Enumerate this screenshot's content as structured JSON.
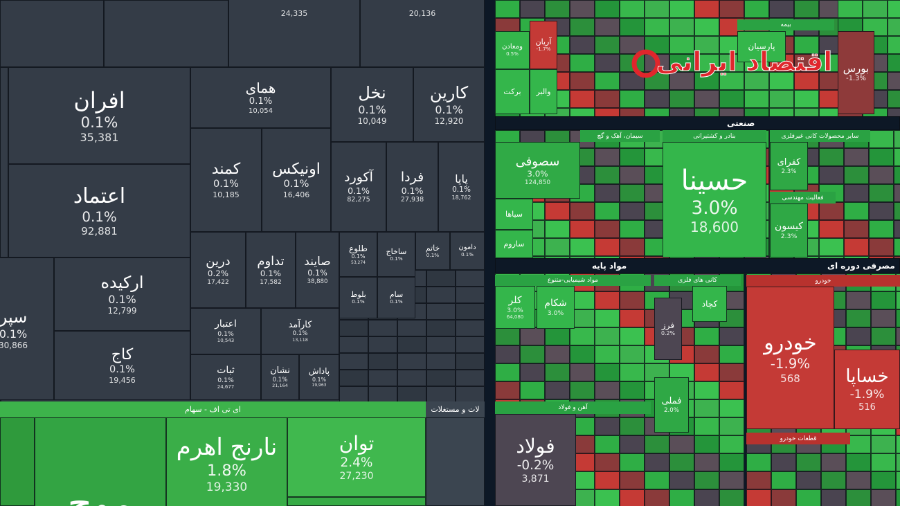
{
  "left_panel": {
    "tiles": [
      {
        "volume": "24,335"
      },
      {
        "volume": "20,136"
      },
      {
        "label": "افران",
        "change": "0.1%",
        "volume": "35,381"
      },
      {
        "label": "اعتماد",
        "change": "0.1%",
        "volume": "92,881"
      },
      {
        "label": "همای",
        "change": "0.1%",
        "volume": "10,054"
      },
      {
        "label": "نخل",
        "change": "0.1%",
        "volume": "10,049"
      },
      {
        "label": "کارین",
        "change": "0.1%",
        "volume": "12,920"
      },
      {
        "label": "کمند",
        "change": "0.1%",
        "volume": "10,185"
      },
      {
        "label": "اونیکس",
        "change": "0.1%",
        "volume": "16,406"
      },
      {
        "label": "آکورد",
        "change": "0.1%",
        "volume": "82,275"
      },
      {
        "label": "فردا",
        "change": "0.1%",
        "volume": "27,938"
      },
      {
        "label": "پایا",
        "change": "0.1%",
        "volume": "18,762"
      },
      {
        "label": "ارکیده",
        "change": "0.1%",
        "volume": "12,799"
      },
      {
        "label": "سپر",
        "change": "0.1%",
        "volume": "30,866"
      },
      {
        "label": "کاج",
        "change": "0.1%",
        "volume": "19,456"
      },
      {
        "label": "درین",
        "change": "0.2%",
        "volume": "17,422"
      },
      {
        "label": "تداوم",
        "change": "0.1%",
        "volume": "17,582"
      },
      {
        "label": "صایند",
        "change": "0.1%",
        "volume": "38,880"
      },
      {
        "label": "طلوع",
        "change": "0.1%",
        "volume": "53,274"
      },
      {
        "label": "ساخاج",
        "change": "0.1%"
      },
      {
        "label": "خاتم",
        "change": "0.1%"
      },
      {
        "label": "دامون",
        "change": "0.1%"
      },
      {
        "label": "اعتبار",
        "change": "0.1%",
        "volume": "10,543"
      },
      {
        "label": "کارآمد",
        "change": "0.1%",
        "volume": "13,118"
      },
      {
        "label": "ثبات",
        "change": "0.1%",
        "volume": "24,677"
      },
      {
        "label": "نشان",
        "change": "0.1%",
        "volume": "21,164"
      },
      {
        "label": "پاداش",
        "change": "0.1%",
        "volume": "19,963"
      },
      {
        "label": "بلوط",
        "change": "0.1%"
      },
      {
        "label": "سام",
        "change": "0.1%"
      }
    ]
  },
  "etf_section": {
    "header": "ای تی اف - سهام",
    "side_header": "لات و مستغلات",
    "tiles": [
      {
        "label": "موج"
      },
      {
        "label": "نارنج اهرم",
        "change": "1.8%",
        "volume": "19,330"
      },
      {
        "label": "توان",
        "change": "2.4%",
        "volume": "27,230"
      }
    ]
  },
  "right_panel": {
    "sections": [
      "صنعتی",
      "مواد پایه",
      "مصرفی دوره ای"
    ],
    "groups": [
      "بنادر و کشتیرانی",
      "سیمان، آهک و گچ",
      "سایر محصولات کانی غیرفلزی",
      "فعالیت مهندسی",
      "مواد شیمیایی-متنوع",
      "کانی های فلزی",
      "آهن و فولاد",
      "خودرو",
      "قطعات خودرو",
      "بیمه"
    ],
    "tiles": [
      {
        "label": "حسینا",
        "change": "3.0%",
        "volume": "18,600"
      },
      {
        "label": "سصوفی",
        "change": "3.0%",
        "volume": "124,850"
      },
      {
        "label": "خودرو",
        "change": "-1.9%",
        "volume": "568"
      },
      {
        "label": "خساپا",
        "change": "-1.9%",
        "volume": "516"
      },
      {
        "label": "فولاد",
        "change": "-0.2%",
        "volume": "3,871"
      },
      {
        "label": "بورس",
        "change": "-1.3%"
      },
      {
        "label": "کیسون",
        "change": "2.3%"
      },
      {
        "label": "کفرای",
        "change": "2.3%"
      },
      {
        "label": "کلر",
        "change": "3.0%",
        "volume": "64,080"
      },
      {
        "label": "شکام",
        "change": "3.0%"
      },
      {
        "label": "فملی",
        "change": "2.0%"
      },
      {
        "label": "فرز",
        "change": "0.2%"
      },
      {
        "label": "کچاد"
      },
      {
        "label": "سیاها"
      },
      {
        "label": "ساروم"
      },
      {
        "label": "پارسیان"
      },
      {
        "label": "آریان",
        "change": "-1.7%"
      },
      {
        "label": "ومعادن",
        "change": "0.5%"
      },
      {
        "label": "برکت"
      },
      {
        "label": "والبر"
      }
    ]
  },
  "watermark": {
    "brand": "اقتصاد ایرانی"
  }
}
